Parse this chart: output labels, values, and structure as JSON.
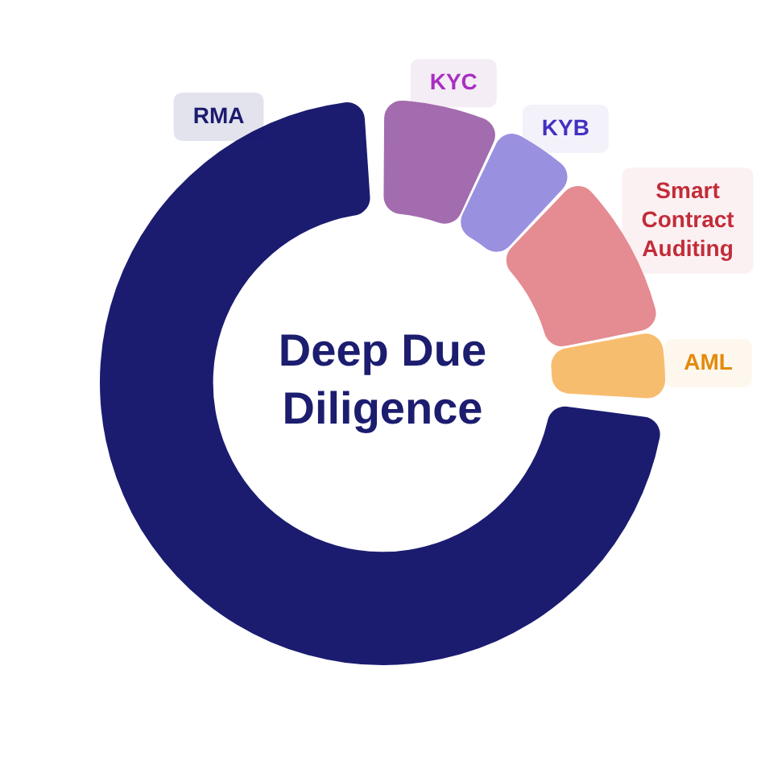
{
  "chart_data": {
    "type": "donut",
    "title": "Deep Due Diligence",
    "categories": [
      "KYC",
      "KYB",
      "Smart Contract Auditing",
      "AML",
      "RMA"
    ],
    "values": [
      7,
      5,
      10,
      4,
      74
    ],
    "colors": [
      "#a36cae",
      "#9a90e0",
      "#e58b92",
      "#f7bd6e",
      "#1b1c70"
    ]
  }
}
